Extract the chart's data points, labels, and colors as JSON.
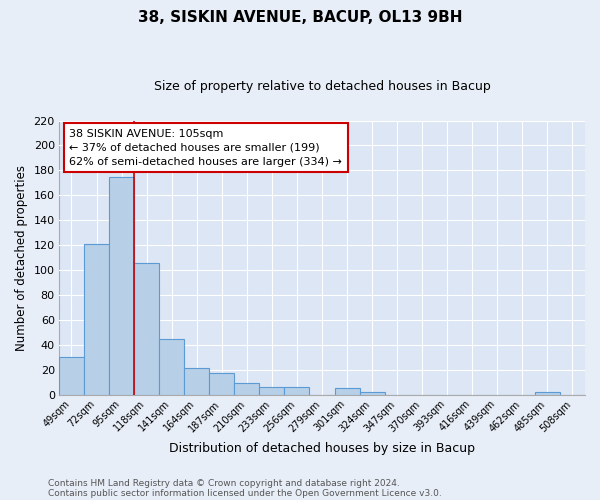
{
  "title": "38, SISKIN AVENUE, BACUP, OL13 9BH",
  "subtitle": "Size of property relative to detached houses in Bacup",
  "xlabel": "Distribution of detached houses by size in Bacup",
  "ylabel": "Number of detached properties",
  "bin_labels": [
    "49sqm",
    "72sqm",
    "95sqm",
    "118sqm",
    "141sqm",
    "164sqm",
    "187sqm",
    "210sqm",
    "233sqm",
    "256sqm",
    "279sqm",
    "301sqm",
    "324sqm",
    "347sqm",
    "370sqm",
    "393sqm",
    "416sqm",
    "439sqm",
    "462sqm",
    "485sqm",
    "508sqm"
  ],
  "bar_heights": [
    30,
    121,
    175,
    106,
    45,
    21,
    17,
    9,
    6,
    6,
    0,
    5,
    2,
    0,
    0,
    0,
    0,
    0,
    0,
    2,
    0
  ],
  "bar_color": "#b8cfe8",
  "bar_edge_color": "#5b9bd5",
  "bar_edge_width": 0.8,
  "plot_bg_color": "#dce6f5",
  "fig_bg_color": "#e8eef8",
  "grid_color": "#ffffff",
  "red_line_bin_index": 2,
  "red_line_color": "#cc0000",
  "annotation_line1": "38 SISKIN AVENUE: 105sqm",
  "annotation_line2": "← 37% of detached houses are smaller (199)",
  "annotation_line3": "62% of semi-detached houses are larger (334) →",
  "annotation_box_color": "#ffffff",
  "annotation_box_edge": "#cc0000",
  "ylim": [
    0,
    220
  ],
  "yticks": [
    0,
    20,
    40,
    60,
    80,
    100,
    120,
    140,
    160,
    180,
    200,
    220
  ],
  "footer_line1": "Contains HM Land Registry data © Crown copyright and database right 2024.",
  "footer_line2": "Contains public sector information licensed under the Open Government Licence v3.0."
}
